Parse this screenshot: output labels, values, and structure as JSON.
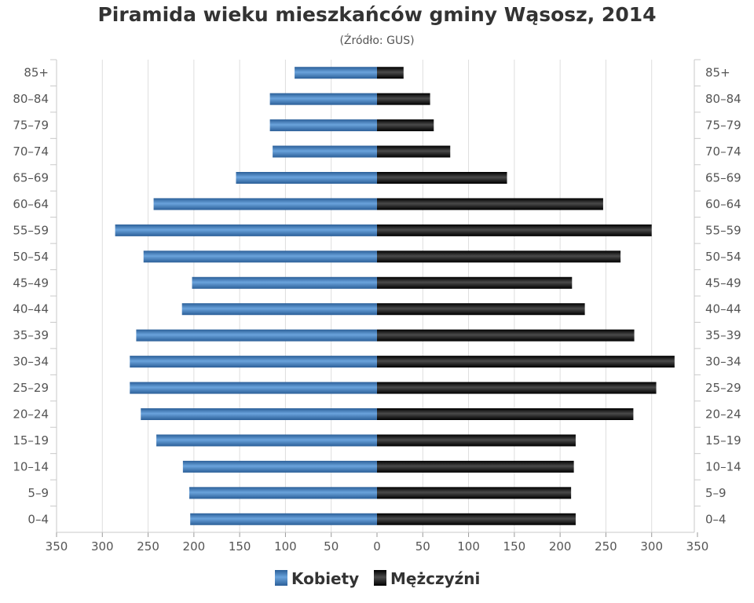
{
  "chart_data": {
    "type": "bar",
    "title": "Piramida wieku mieszkańców gminy Wąsosz, 2014",
    "subtitle": "(Źródło: GUS)",
    "categories": [
      "85+",
      "80–84",
      "75–79",
      "70–74",
      "65–69",
      "60–64",
      "55–59",
      "50–54",
      "45–49",
      "40–44",
      "35–39",
      "30–34",
      "25–29",
      "20–24",
      "15–19",
      "10–14",
      "5–9",
      "0–4"
    ],
    "series": [
      {
        "name": "Kobiety",
        "color": "#3f7fc1",
        "values": [
          90,
          117,
          117,
          114,
          154,
          244,
          286,
          255,
          202,
          213,
          263,
          270,
          270,
          258,
          241,
          212,
          205,
          204
        ]
      },
      {
        "name": "Mężczyźni",
        "color": "#111111",
        "values": [
          29,
          58,
          62,
          80,
          142,
          247,
          300,
          266,
          213,
          227,
          281,
          325,
          305,
          280,
          217,
          215,
          212,
          217
        ]
      }
    ],
    "xlim": [
      -350,
      350
    ],
    "xticks": [
      350,
      300,
      250,
      200,
      150,
      100,
      50,
      0,
      50,
      100,
      150,
      200,
      250,
      300,
      350
    ],
    "grid": true,
    "legend_position": "bottom"
  }
}
